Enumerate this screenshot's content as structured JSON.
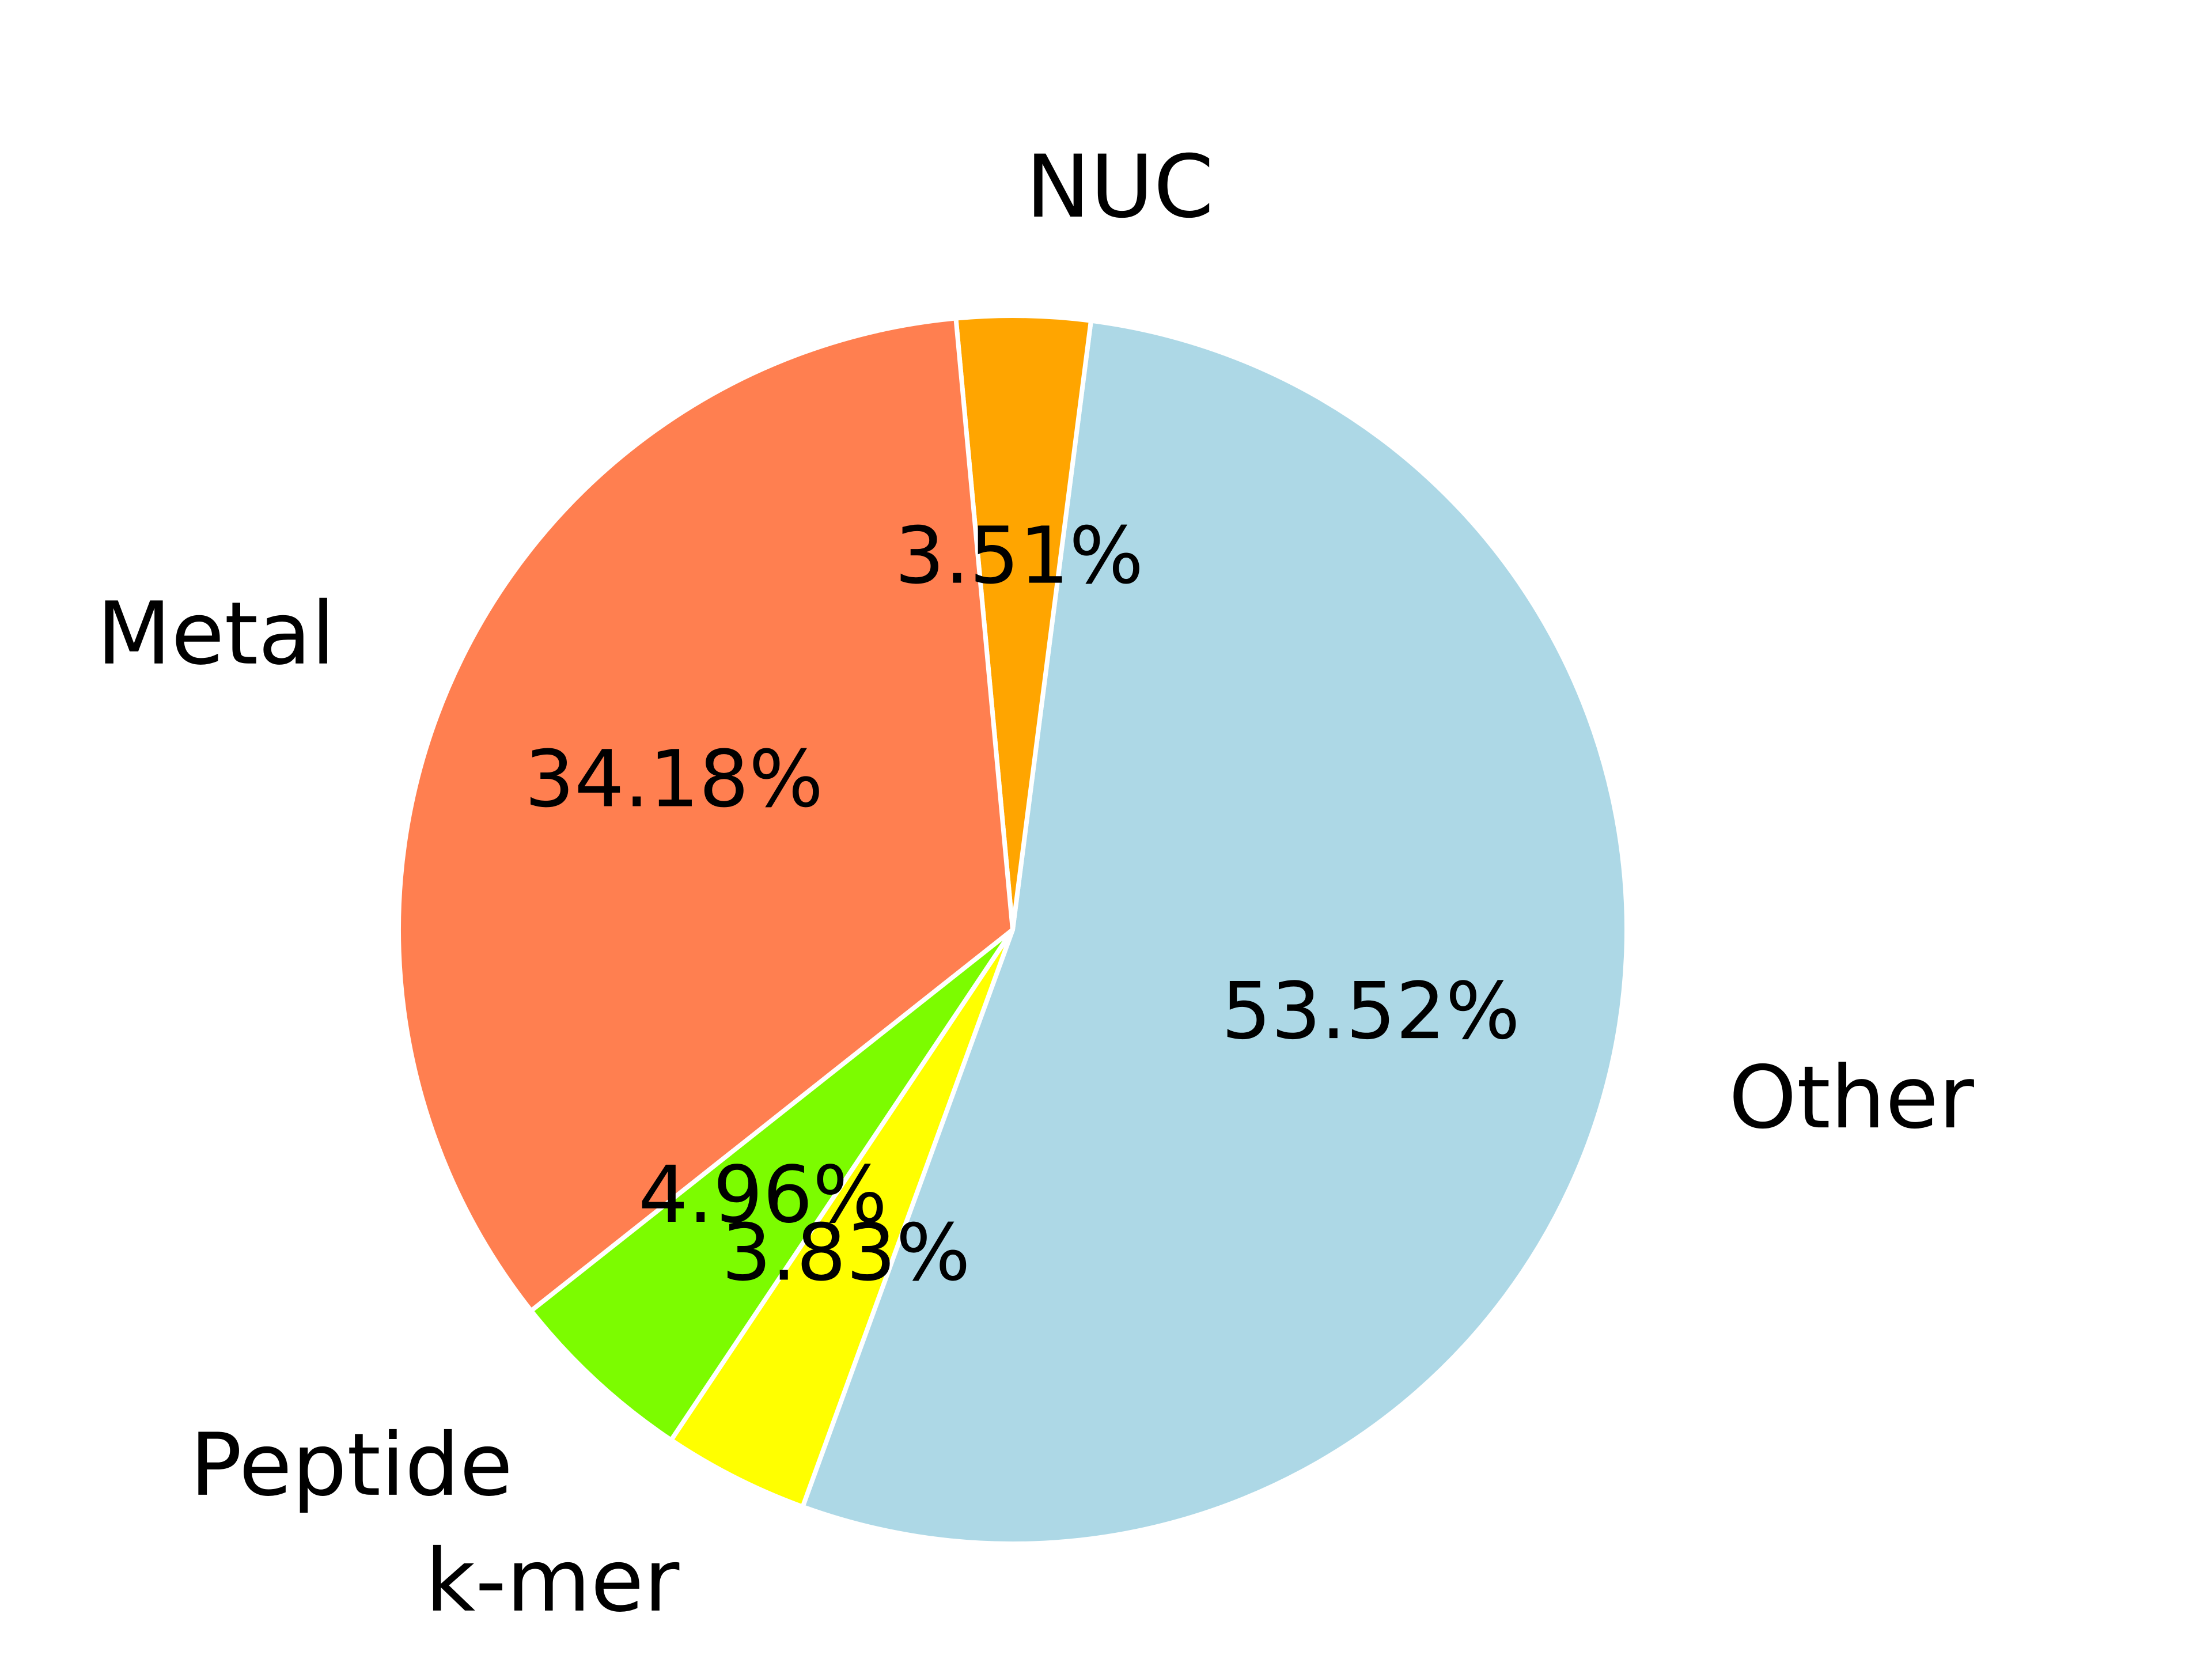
{
  "chart_data": {
    "type": "pie",
    "categories": [
      "Other",
      "NUC",
      "Metal",
      "Peptide",
      "k-mer"
    ],
    "values": [
      53.52,
      3.51,
      34.18,
      4.96,
      3.83
    ],
    "value_labels": [
      "53.52%",
      "3.51%",
      "34.18%",
      "4.96%",
      "3.83%"
    ],
    "colors": [
      "#add8e6",
      "#ffa500",
      "#ff7f50",
      "#7cfc00",
      "#ffff00"
    ],
    "startangle": 250
  }
}
